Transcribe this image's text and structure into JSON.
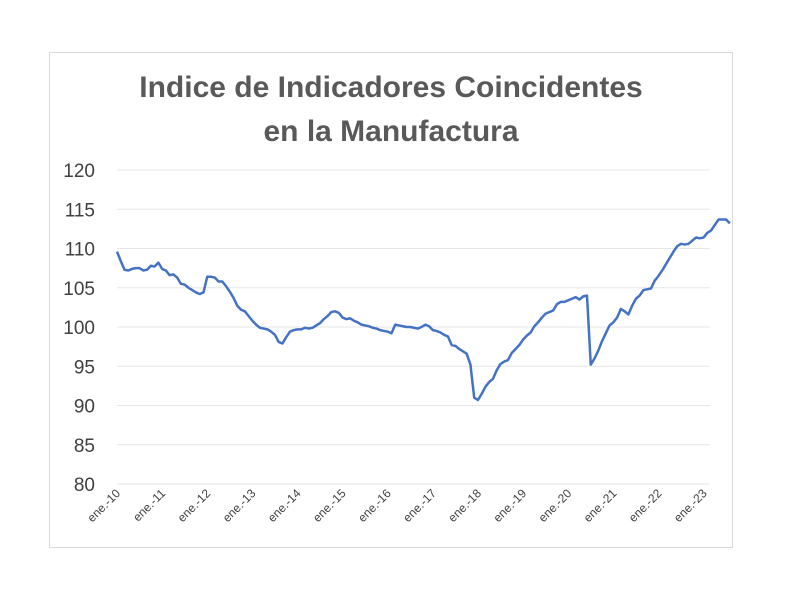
{
  "chart_data": {
    "type": "line",
    "title": [
      "Indice de Indicadores Coincidentes",
      "en la Manufactura"
    ],
    "xlabel": "",
    "ylabel": "",
    "ylim": [
      80,
      120
    ],
    "yticks": [
      80,
      85,
      90,
      95,
      100,
      105,
      110,
      115,
      120
    ],
    "xtick_labels": [
      "ene.-10",
      "ene.-11",
      "ene.-12",
      "ene.-13",
      "ene.-14",
      "ene.-15",
      "ene.-16",
      "ene.-17",
      "ene.-18",
      "ene.-19",
      "ene.-20",
      "ene.-21",
      "ene.-22",
      "ene.-23"
    ],
    "x_start": "ene.-10",
    "grid": true,
    "legend": "none",
    "line_color": "#4472c4",
    "series": [
      {
        "values": [
          109.6,
          108.4,
          107.3,
          107.2,
          107.4,
          107.5,
          107.5,
          107.2,
          107.3,
          107.8,
          107.7,
          108.2,
          107.4,
          107.2,
          106.6,
          106.7,
          106.3,
          105.5,
          105.4,
          105.0,
          104.7,
          104.4,
          104.2,
          104.4,
          106.4,
          106.4,
          106.3,
          105.8,
          105.8,
          105.2,
          104.5,
          103.7,
          102.7,
          102.2,
          102.0,
          101.4,
          100.8,
          100.3,
          99.9,
          99.8,
          99.7,
          99.4,
          99.0,
          98.1,
          97.9,
          98.7,
          99.4,
          99.6,
          99.7,
          99.7,
          99.9,
          99.8,
          99.9,
          100.2,
          100.5,
          101.0,
          101.4,
          101.9,
          102.0,
          101.8,
          101.2,
          101.0,
          101.1,
          100.8,
          100.6,
          100.3,
          100.2,
          100.1,
          99.9,
          99.8,
          99.6,
          99.5,
          99.4,
          99.2,
          100.3,
          100.2,
          100.1,
          100.0,
          100.0,
          99.9,
          99.8,
          100.0,
          100.3,
          100.1,
          99.6,
          99.5,
          99.3,
          99.0,
          98.8,
          97.7,
          97.6,
          97.2,
          96.9,
          96.6,
          95.2,
          91.0,
          90.7,
          91.5,
          92.4,
          93.0,
          93.4,
          94.5,
          95.3,
          95.6,
          95.8,
          96.7,
          97.2,
          97.7,
          98.4,
          98.9,
          99.3,
          100.1,
          100.6,
          101.2,
          101.7,
          101.9,
          102.1,
          102.9,
          103.2,
          103.2,
          103.4,
          103.6,
          103.8,
          103.5,
          103.9,
          104.0,
          95.2,
          96.0,
          97.0,
          98.2,
          99.2,
          100.2,
          100.6,
          101.2,
          102.3,
          102.0,
          101.6,
          102.7,
          103.6,
          104.0,
          104.7,
          104.8,
          104.9,
          105.9,
          106.5,
          107.2,
          108.0,
          108.8,
          109.6,
          110.3,
          110.6,
          110.5,
          110.6,
          111.0,
          111.4,
          111.3,
          111.4,
          112.0,
          112.3,
          113.0,
          113.7,
          113.7,
          113.7,
          113.2
        ]
      }
    ]
  }
}
